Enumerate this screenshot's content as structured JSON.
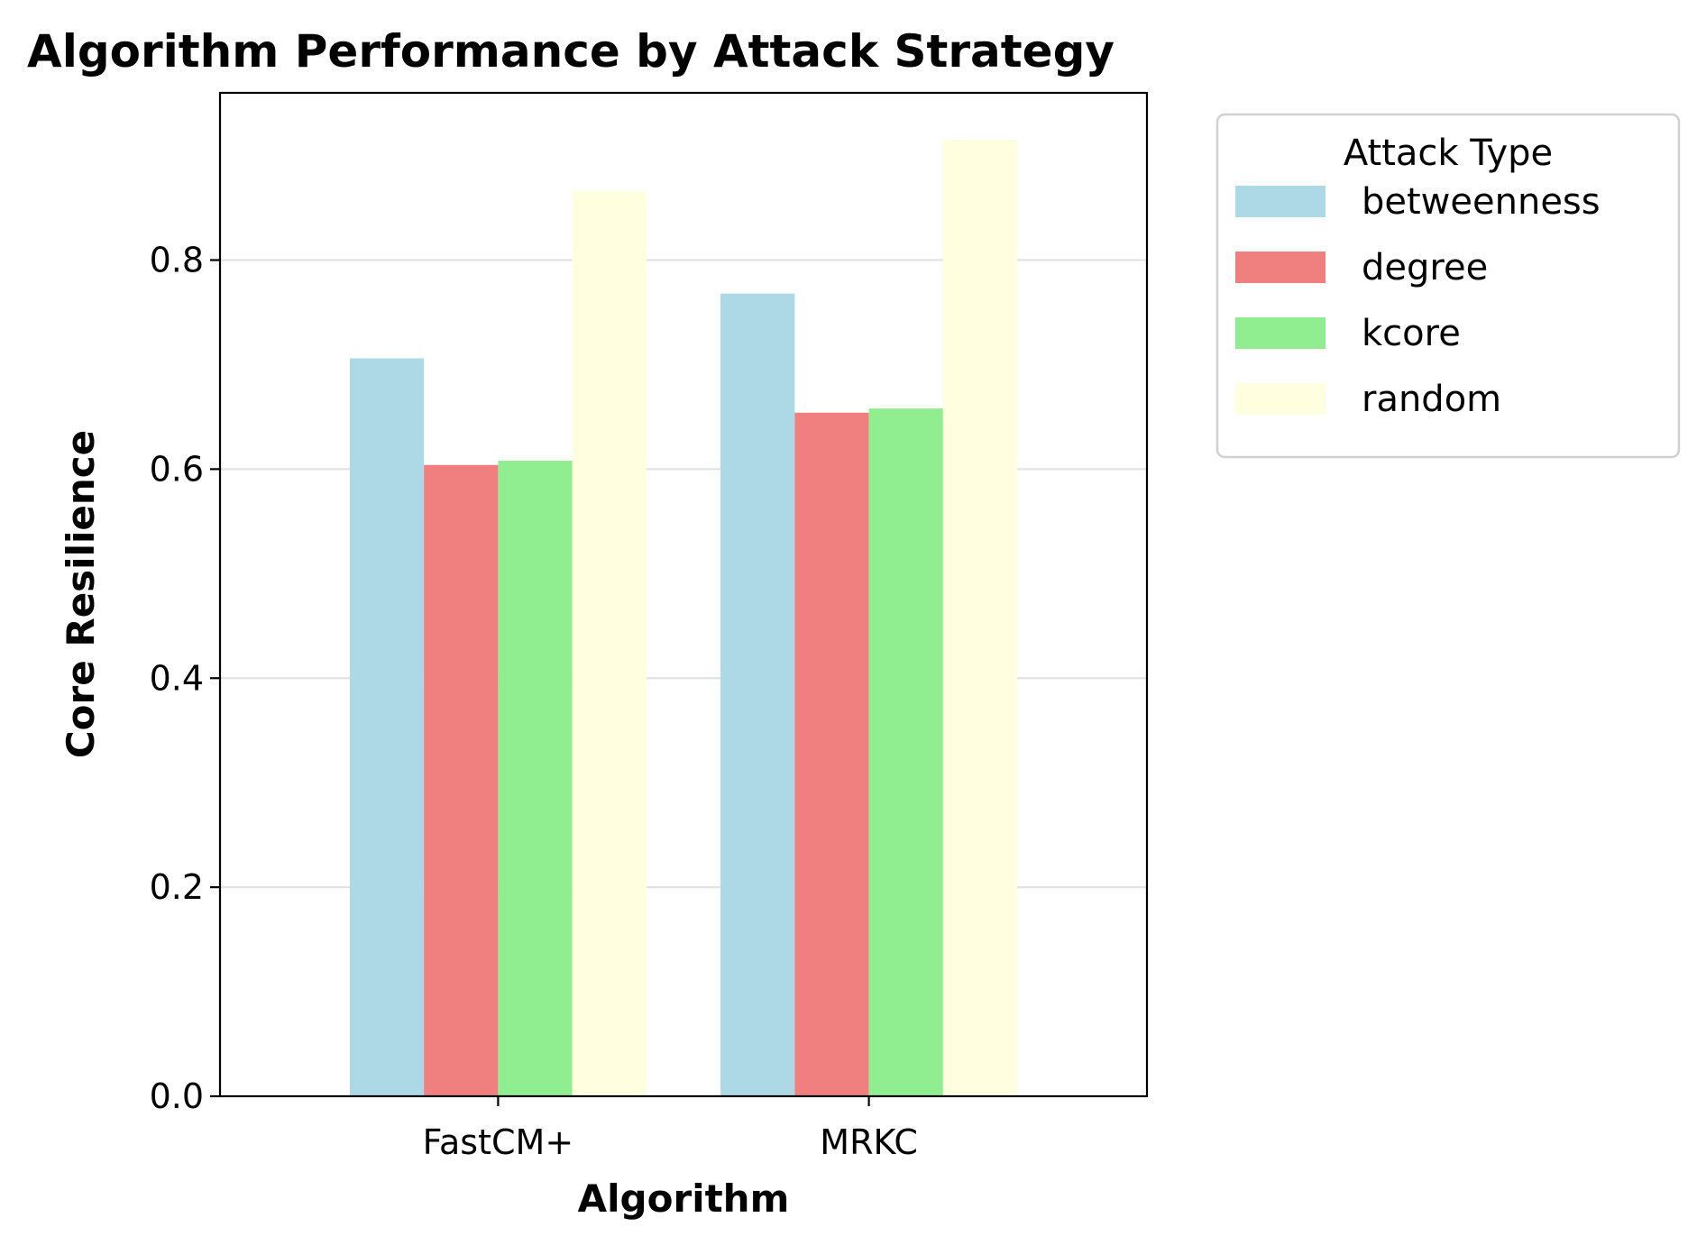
{
  "chart_data": {
    "type": "bar",
    "title": "Algorithm Performance by Attack Strategy",
    "xlabel": "Algorithm",
    "ylabel": "Core Resilience",
    "categories": [
      "FastCM+",
      "MRKC"
    ],
    "series": [
      {
        "name": "betweenness",
        "color": "#add8e6",
        "values": [
          0.706,
          0.768
        ]
      },
      {
        "name": "degree",
        "color": "#f08080",
        "values": [
          0.604,
          0.654
        ]
      },
      {
        "name": "kcore",
        "color": "#90ee90",
        "values": [
          0.608,
          0.658
        ]
      },
      {
        "name": "random",
        "color": "#ffffe0",
        "values": [
          0.866,
          0.915
        ]
      }
    ],
    "ylim": [
      0,
      0.96
    ],
    "yticks": [
      0.0,
      0.2,
      0.4,
      0.6,
      0.8
    ],
    "ytick_labels": [
      "0.0",
      "0.2",
      "0.4",
      "0.6",
      "0.8"
    ],
    "grid": "horizontal",
    "legend": {
      "title": "Attack Type",
      "placement": "outside-upper-right"
    }
  }
}
